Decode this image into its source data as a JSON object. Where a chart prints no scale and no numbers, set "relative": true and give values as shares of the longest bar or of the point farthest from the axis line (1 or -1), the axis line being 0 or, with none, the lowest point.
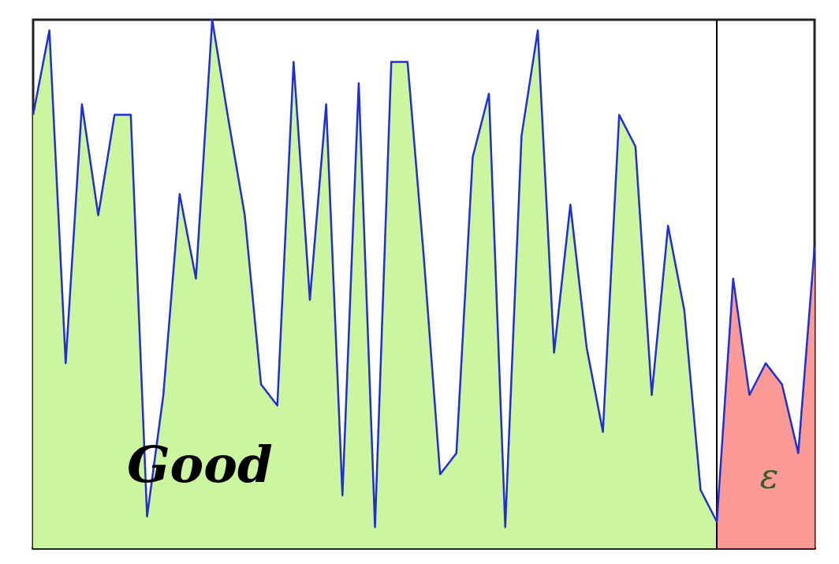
{
  "chart_data": {
    "type": "area",
    "relative": true,
    "marker": "none",
    "line_style": "solid",
    "categories": [
      null,
      null,
      null,
      null,
      null,
      null,
      null,
      null,
      null,
      null,
      null,
      null,
      null,
      null,
      null,
      null,
      null,
      null,
      null,
      null,
      null,
      null,
      null,
      null,
      null,
      null,
      null,
      null,
      null,
      null,
      null,
      null,
      null,
      null,
      null,
      null,
      null,
      null,
      null,
      null,
      null,
      null,
      null,
      null,
      null,
      null,
      null,
      null,
      null
    ],
    "series": [
      {
        "type": "line",
        "color": "#1f2fd0",
        "values": [
          0.82,
          0.98,
          0.35,
          0.84,
          0.63,
          0.82,
          0.82,
          0.06,
          0.29,
          0.67,
          0.51,
          1,
          0.81,
          0.63,
          0.31,
          0.27,
          0.92,
          0.47,
          0.84,
          0.1,
          0.88,
          0.04,
          0.92,
          0.92,
          0.55,
          0.14,
          0.18,
          0.74,
          0.86,
          0.04,
          0.78,
          0.98,
          0.37,
          0.65,
          0.38,
          0.22,
          0.82,
          0.76,
          0.29,
          0.61,
          0.45,
          0.11,
          0.05,
          0.51,
          0.29,
          0.35,
          0.31,
          0.18,
          0.57
        ]
      },
      {
        "color": "#ccf5a0",
        "values": [
          0.82,
          0.98,
          0.35,
          0.84,
          0.63,
          0.82,
          0.82,
          0.06,
          0.29,
          0.67,
          0.51,
          1,
          0.81,
          0.63,
          0.31,
          0.27,
          0.92,
          0.47,
          0.84,
          0.1,
          0.88,
          0.04,
          0.92,
          0.92,
          0.55,
          0.14,
          0.18,
          0.74,
          0.86,
          0.04,
          0.78,
          0.98,
          0.37,
          0.65,
          0.38,
          0.22,
          0.82,
          0.76,
          0.29,
          0.61,
          0.45,
          0.11,
          0.05,
          null,
          null,
          null,
          null,
          null,
          null
        ]
      },
      {
        "color": "#fb9a96",
        "values": [
          null,
          null,
          null,
          null,
          null,
          null,
          null,
          null,
          null,
          null,
          null,
          null,
          null,
          null,
          null,
          null,
          null,
          null,
          null,
          null,
          null,
          null,
          null,
          null,
          null,
          null,
          null,
          null,
          null,
          null,
          null,
          null,
          null,
          null,
          null,
          null,
          null,
          null,
          null,
          null,
          null,
          null,
          0.05,
          0.51,
          0.29,
          0.35,
          0.31,
          0.18,
          0.57
        ]
      }
    ],
    "annotations": [
      "Good",
      "ε"
    ]
  }
}
